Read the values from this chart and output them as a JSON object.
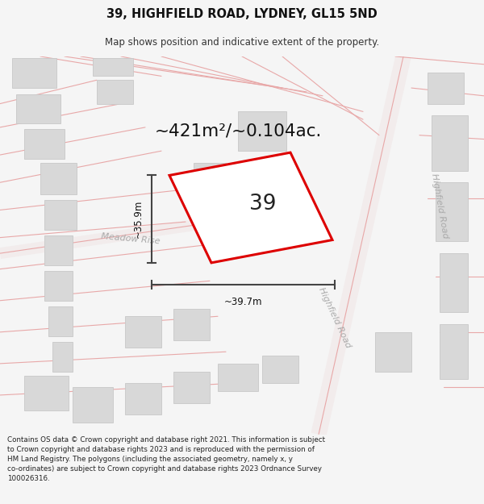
{
  "title": "39, HIGHFIELD ROAD, LYDNEY, GL15 5ND",
  "subtitle": "Map shows position and indicative extent of the property.",
  "area_label": "~421m²/~0.104ac.",
  "plot_number": "39",
  "dim_width": "~39.7m",
  "dim_height": "~35.9m",
  "road_label_meadow": "Meadow Rise",
  "road_label_highfield1": "Highfield Road",
  "road_label_highfield2": "Highfield Road",
  "copyright_text": "Contains OS data © Crown copyright and database right 2021. This information is subject to Crown copyright and database rights 2023 and is reproduced with the permission of HM Land Registry. The polygons (including the associated geometry, namely x, y co-ordinates) are subject to Crown copyright and database rights 2023 Ordnance Survey 100026316.",
  "bg_color": "#f5f5f5",
  "map_bg": "#ffffff",
  "plot_color": "#dd0000",
  "road_color": "#e8a8a8",
  "road_fill": "#f5eded",
  "building_color": "#d8d8d8",
  "building_edge": "#c8c8c8",
  "dim_color": "#444444",
  "road_label_color": "#aaaaaa"
}
